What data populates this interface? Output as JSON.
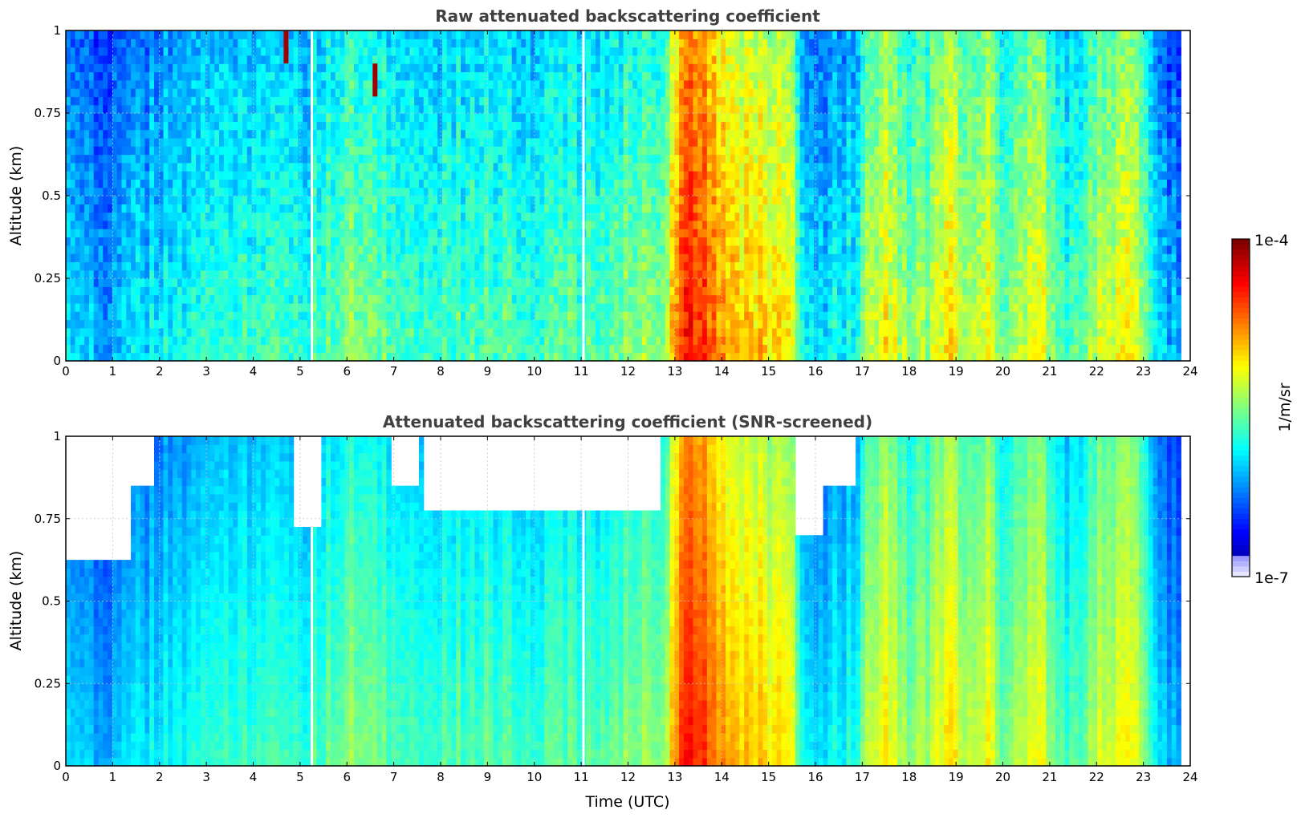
{
  "chart_data": [
    {
      "type": "heatmap",
      "title": "Raw attenuated backscattering coefficient",
      "xlabel": "",
      "ylabel": "Altitude (km)",
      "xlim": [
        0,
        24
      ],
      "ylim": [
        0,
        1
      ],
      "x_ticks": [
        "0",
        "1",
        "2",
        "3",
        "4",
        "5",
        "6",
        "7",
        "8",
        "9",
        "10",
        "11",
        "12",
        "13",
        "14",
        "15",
        "16",
        "17",
        "18",
        "19",
        "20",
        "21",
        "22",
        "23",
        "24"
      ],
      "y_ticks": [
        "0",
        "0.25",
        "0.5",
        "0.75",
        "1"
      ],
      "grid": true,
      "screened": false,
      "data_end_time": 23.8,
      "missing_times": [
        5.25,
        11.05
      ],
      "plume_events": [
        {
          "time": 4.7,
          "alt_range": [
            0.9,
            1.0
          ]
        },
        {
          "time": 6.6,
          "alt_range": [
            0.8,
            0.9
          ]
        }
      ],
      "time_profile_log10": [
        {
          "t": 0,
          "v": -6.0
        },
        {
          "t": 1,
          "v": -6.05
        },
        {
          "t": 2,
          "v": -5.85
        },
        {
          "t": 3,
          "v": -5.8
        },
        {
          "t": 4,
          "v": -5.7
        },
        {
          "t": 5,
          "v": -5.72
        },
        {
          "t": 6,
          "v": -5.45
        },
        {
          "t": 7,
          "v": -5.6
        },
        {
          "t": 8,
          "v": -5.65
        },
        {
          "t": 9,
          "v": -5.6
        },
        {
          "t": 10,
          "v": -5.65
        },
        {
          "t": 11,
          "v": -5.6
        },
        {
          "t": 12,
          "v": -5.5
        },
        {
          "t": 12.8,
          "v": -5.4
        },
        {
          "t": 13.1,
          "v": -4.6
        },
        {
          "t": 13.35,
          "v": -4.3
        },
        {
          "t": 13.7,
          "v": -4.6
        },
        {
          "t": 14,
          "v": -4.85
        },
        {
          "t": 14.5,
          "v": -4.9
        },
        {
          "t": 15,
          "v": -5.0
        },
        {
          "t": 15.5,
          "v": -5.05
        },
        {
          "t": 15.7,
          "v": -5.7
        },
        {
          "t": 16,
          "v": -5.9
        },
        {
          "t": 16.9,
          "v": -5.8
        },
        {
          "t": 17,
          "v": -5.4
        },
        {
          "t": 17.5,
          "v": -5.1
        },
        {
          "t": 18,
          "v": -5.5
        },
        {
          "t": 18.5,
          "v": -5.3
        },
        {
          "t": 18.9,
          "v": -5.0
        },
        {
          "t": 19.3,
          "v": -5.4
        },
        {
          "t": 19.6,
          "v": -5.1
        },
        {
          "t": 20,
          "v": -5.5
        },
        {
          "t": 20.8,
          "v": -5.1
        },
        {
          "t": 21,
          "v": -5.5
        },
        {
          "t": 21.5,
          "v": -5.7
        },
        {
          "t": 22.2,
          "v": -5.2
        },
        {
          "t": 22.7,
          "v": -5.1
        },
        {
          "t": 23,
          "v": -5.4
        },
        {
          "t": 23.3,
          "v": -6.0
        },
        {
          "t": 23.8,
          "v": -6.1
        }
      ]
    },
    {
      "type": "heatmap",
      "title": "Attenuated backscattering coefficient (SNR-screened)",
      "xlabel": "Time (UTC)",
      "ylabel": "Altitude (km)",
      "xlim": [
        0,
        24
      ],
      "ylim": [
        0,
        1
      ],
      "x_ticks": [
        "0",
        "1",
        "2",
        "3",
        "4",
        "5",
        "6",
        "7",
        "8",
        "9",
        "10",
        "11",
        "12",
        "13",
        "14",
        "15",
        "16",
        "17",
        "18",
        "19",
        "20",
        "21",
        "22",
        "23",
        "24"
      ],
      "y_ticks": [
        "0",
        "0.25",
        "0.5",
        "0.75",
        "1"
      ],
      "grid": true,
      "screened": true,
      "data_end_time": 23.8,
      "missing_times": [
        5.25,
        11.05
      ],
      "masked_regions": [
        {
          "t0": 0.0,
          "t1": 1.4,
          "alt_min": 0.62
        },
        {
          "t0": 1.4,
          "t1": 1.9,
          "alt_min": 0.85
        },
        {
          "t0": 4.9,
          "t1": 5.5,
          "alt_min": 0.72
        },
        {
          "t0": 6.9,
          "t1": 7.5,
          "alt_min": 0.85
        },
        {
          "t0": 7.6,
          "t1": 12.7,
          "alt_min": 0.78
        },
        {
          "t0": 15.6,
          "t1": 16.2,
          "alt_min": 0.7
        },
        {
          "t0": 16.2,
          "t1": 16.9,
          "alt_min": 0.85
        }
      ]
    }
  ],
  "colorbar": {
    "colormap": "jet",
    "scale": "log",
    "min_label": "1e-7",
    "max_label": "1e-4",
    "units": "1/m/sr",
    "range_log10": [
      -7,
      -4
    ]
  }
}
